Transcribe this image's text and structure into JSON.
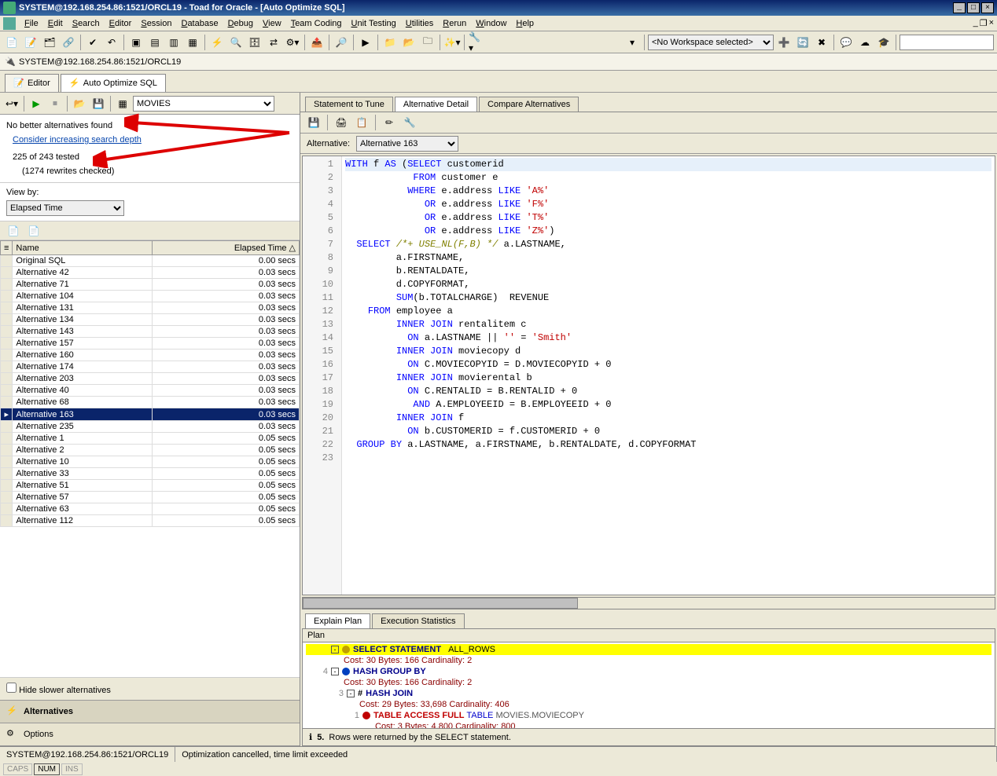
{
  "window": {
    "title": "SYSTEM@192.168.254.86:1521/ORCL19 - Toad for Oracle - [Auto Optimize SQL]"
  },
  "menu": {
    "items": [
      "File",
      "Edit",
      "Search",
      "Editor",
      "Session",
      "Database",
      "Debug",
      "View",
      "Team Coding",
      "Unit Testing",
      "Utilities",
      "Rerun",
      "Window",
      "Help"
    ]
  },
  "workspace": {
    "selected": "<No Workspace selected>"
  },
  "connection": {
    "label": "SYSTEM@192.168.254.86:1521/ORCL19"
  },
  "editor_tabs": {
    "items": [
      {
        "label": "Editor",
        "active": false
      },
      {
        "label": "Auto Optimize SQL",
        "active": true
      }
    ]
  },
  "schema_selector": {
    "value": "MOVIES"
  },
  "status": {
    "no_better": "No better alternatives found",
    "consider_link": "Consider increasing search depth",
    "tested": "225 of 243 tested",
    "rewrites": "(1274 rewrites checked)"
  },
  "viewby": {
    "label": "View by:",
    "value": "Elapsed Time"
  },
  "alt_table": {
    "columns": [
      "Name",
      "Elapsed Time"
    ],
    "rows": [
      {
        "name": "Original SQL",
        "time": "0.00 secs",
        "selected": false
      },
      {
        "name": "Alternative 42",
        "time": "0.03 secs",
        "selected": false
      },
      {
        "name": "Alternative 71",
        "time": "0.03 secs",
        "selected": false
      },
      {
        "name": "Alternative 104",
        "time": "0.03 secs",
        "selected": false
      },
      {
        "name": "Alternative 131",
        "time": "0.03 secs",
        "selected": false
      },
      {
        "name": "Alternative 134",
        "time": "0.03 secs",
        "selected": false
      },
      {
        "name": "Alternative 143",
        "time": "0.03 secs",
        "selected": false
      },
      {
        "name": "Alternative 157",
        "time": "0.03 secs",
        "selected": false
      },
      {
        "name": "Alternative 160",
        "time": "0.03 secs",
        "selected": false
      },
      {
        "name": "Alternative 174",
        "time": "0.03 secs",
        "selected": false
      },
      {
        "name": "Alternative 203",
        "time": "0.03 secs",
        "selected": false
      },
      {
        "name": "Alternative 40",
        "time": "0.03 secs",
        "selected": false
      },
      {
        "name": "Alternative 68",
        "time": "0.03 secs",
        "selected": false
      },
      {
        "name": "Alternative 163",
        "time": "0.03 secs",
        "selected": true
      },
      {
        "name": "Alternative 235",
        "time": "0.03 secs",
        "selected": false
      },
      {
        "name": "Alternative 1",
        "time": "0.05 secs",
        "selected": false
      },
      {
        "name": "Alternative 2",
        "time": "0.05 secs",
        "selected": false
      },
      {
        "name": "Alternative 10",
        "time": "0.05 secs",
        "selected": false
      },
      {
        "name": "Alternative 33",
        "time": "0.05 secs",
        "selected": false
      },
      {
        "name": "Alternative 51",
        "time": "0.05 secs",
        "selected": false
      },
      {
        "name": "Alternative 57",
        "time": "0.05 secs",
        "selected": false
      },
      {
        "name": "Alternative 63",
        "time": "0.05 secs",
        "selected": false
      },
      {
        "name": "Alternative 112",
        "time": "0.05 secs",
        "selected": false
      }
    ]
  },
  "hide_slower": {
    "label": "Hide slower alternatives",
    "checked": false
  },
  "accordion": {
    "items": [
      {
        "label": "Alternatives",
        "active": true
      },
      {
        "label": "Options",
        "active": false
      }
    ]
  },
  "right_tabs": {
    "items": [
      {
        "label": "Statement to Tune",
        "active": false
      },
      {
        "label": "Alternative Detail",
        "active": true
      },
      {
        "label": "Compare Alternatives",
        "active": false
      }
    ]
  },
  "alternative": {
    "label": "Alternative:",
    "value": "Alternative 163"
  },
  "sql": {
    "lines": [
      {
        "n": 1,
        "tokens": [
          [
            "kw",
            "WITH"
          ],
          [
            "",
            " f "
          ],
          [
            "kw",
            "AS"
          ],
          [
            "",
            " "
          ],
          [
            "",
            "("
          ],
          [
            "kw",
            "SELECT"
          ],
          [
            "",
            " customerid"
          ]
        ]
      },
      {
        "n": 2,
        "tokens": [
          [
            "",
            "            "
          ],
          [
            "kw",
            "FROM"
          ],
          [
            "",
            " customer e"
          ]
        ]
      },
      {
        "n": 3,
        "tokens": [
          [
            "",
            "           "
          ],
          [
            "kw",
            "WHERE"
          ],
          [
            "",
            " e.address "
          ],
          [
            "kw",
            "LIKE"
          ],
          [
            "",
            " "
          ],
          [
            "str",
            "'A%'"
          ]
        ]
      },
      {
        "n": 4,
        "tokens": [
          [
            "",
            "              "
          ],
          [
            "kw",
            "OR"
          ],
          [
            "",
            " e.address "
          ],
          [
            "kw",
            "LIKE"
          ],
          [
            "",
            " "
          ],
          [
            "str",
            "'F%'"
          ]
        ]
      },
      {
        "n": 5,
        "tokens": [
          [
            "",
            "              "
          ],
          [
            "kw",
            "OR"
          ],
          [
            "",
            " e.address "
          ],
          [
            "kw",
            "LIKE"
          ],
          [
            "",
            " "
          ],
          [
            "str",
            "'T%'"
          ]
        ]
      },
      {
        "n": 6,
        "tokens": [
          [
            "",
            "              "
          ],
          [
            "kw",
            "OR"
          ],
          [
            "",
            " e.address "
          ],
          [
            "kw",
            "LIKE"
          ],
          [
            "",
            " "
          ],
          [
            "str",
            "'Z%'"
          ],
          [
            "",
            ")"
          ]
        ]
      },
      {
        "n": 7,
        "tokens": [
          [
            "",
            "  "
          ],
          [
            "kw",
            "SELECT"
          ],
          [
            "",
            " "
          ],
          [
            "cmt",
            "/*+ USE_NL(F,B) */"
          ],
          [
            "",
            " a.LASTNAME,"
          ]
        ]
      },
      {
        "n": 8,
        "tokens": [
          [
            "",
            "         a.FIRSTNAME,"
          ]
        ]
      },
      {
        "n": 9,
        "tokens": [
          [
            "",
            "         b.RENTALDATE,"
          ]
        ]
      },
      {
        "n": 10,
        "tokens": [
          [
            "",
            "         d.COPYFORMAT,"
          ]
        ]
      },
      {
        "n": 11,
        "tokens": [
          [
            "",
            "         "
          ],
          [
            "kw",
            "SUM"
          ],
          [
            "",
            "(b.TOTALCHARGE)  REVENUE"
          ]
        ]
      },
      {
        "n": 12,
        "tokens": [
          [
            "",
            "    "
          ],
          [
            "kw",
            "FROM"
          ],
          [
            "",
            " employee a"
          ]
        ]
      },
      {
        "n": 13,
        "tokens": [
          [
            "",
            "         "
          ],
          [
            "kw",
            "INNER JOIN"
          ],
          [
            "",
            " rentalitem c"
          ]
        ]
      },
      {
        "n": 14,
        "tokens": [
          [
            "",
            "           "
          ],
          [
            "kw",
            "ON"
          ],
          [
            "",
            " a.LASTNAME || "
          ],
          [
            "str",
            "''"
          ],
          [
            "",
            " = "
          ],
          [
            "str",
            "'Smith'"
          ]
        ]
      },
      {
        "n": 15,
        "tokens": [
          [
            "",
            "         "
          ],
          [
            "kw",
            "INNER JOIN"
          ],
          [
            "",
            " moviecopy d"
          ]
        ]
      },
      {
        "n": 16,
        "tokens": [
          [
            "",
            "           "
          ],
          [
            "kw",
            "ON"
          ],
          [
            "",
            " C.MOVIECOPYID = D.MOVIECOPYID + 0"
          ]
        ]
      },
      {
        "n": 17,
        "tokens": [
          [
            "",
            "         "
          ],
          [
            "kw",
            "INNER JOIN"
          ],
          [
            "",
            " movierental b"
          ]
        ]
      },
      {
        "n": 18,
        "tokens": [
          [
            "",
            "           "
          ],
          [
            "kw",
            "ON"
          ],
          [
            "",
            " C.RENTALID = B.RENTALID + 0"
          ]
        ]
      },
      {
        "n": 19,
        "tokens": [
          [
            "",
            "            "
          ],
          [
            "kw",
            "AND"
          ],
          [
            "",
            " A.EMPLOYEEID = B.EMPLOYEEID + 0"
          ]
        ]
      },
      {
        "n": 20,
        "tokens": [
          [
            "",
            "         "
          ],
          [
            "kw",
            "INNER JOIN"
          ],
          [
            "",
            " f"
          ]
        ]
      },
      {
        "n": 21,
        "tokens": [
          [
            "",
            "           "
          ],
          [
            "kw",
            "ON"
          ],
          [
            "",
            " b.CUSTOMERID = f.CUSTOMERID + 0"
          ]
        ]
      },
      {
        "n": 22,
        "tokens": [
          [
            "",
            "  "
          ],
          [
            "kw",
            "GROUP BY"
          ],
          [
            "",
            " a.LASTNAME, a.FIRSTNAME, b.RENTALDATE, d.COPYFORMAT"
          ]
        ]
      },
      {
        "n": 23,
        "tokens": [
          [
            "",
            ""
          ]
        ]
      }
    ]
  },
  "plan_tabs": {
    "items": [
      {
        "label": "Explain Plan",
        "active": true
      },
      {
        "label": "Execution Statistics",
        "active": false
      }
    ]
  },
  "plan": {
    "header": "Plan",
    "nodes": [
      {
        "indent": 0,
        "idx": "",
        "label": "SELECT STATEMENT",
        "extra": "ALL_ROWS",
        "hl": true,
        "bullet": "#c0a000",
        "expander": "-"
      },
      {
        "indent": 1,
        "cost": "Cost: 30  Bytes: 166  Cardinality: 2"
      },
      {
        "indent": 0,
        "idx": "4",
        "label": "HASH GROUP BY",
        "bullet": "#0040c0",
        "expander": "-"
      },
      {
        "indent": 1,
        "cost": "Cost: 30  Bytes: 166  Cardinality: 2"
      },
      {
        "indent": 1,
        "idx": "3",
        "label": "HASH JOIN",
        "bullet_text": "#",
        "expander": "-"
      },
      {
        "indent": 2,
        "cost": "Cost: 29  Bytes: 33,698  Cardinality: 406"
      },
      {
        "indent": 2,
        "idx": "1",
        "label": "TABLE ACCESS FULL",
        "tableref": "TABLE",
        "full": "MOVIES.MOVIECOPY",
        "bullet": "#c00000",
        "red_label": true
      },
      {
        "indent": 3,
        "cost": "Cost: 3  Bytes: 4,800  Cardinality: 800"
      }
    ],
    "message_idx": "5.",
    "message": "Rows were returned by the SELECT statement."
  },
  "statusbar": {
    "conn": "SYSTEM@192.168.254.86:1521/ORCL19",
    "msg": "Optimization cancelled, time limit exceeded"
  },
  "indicators": {
    "items": [
      "CAPS",
      "NUM",
      "INS"
    ]
  }
}
